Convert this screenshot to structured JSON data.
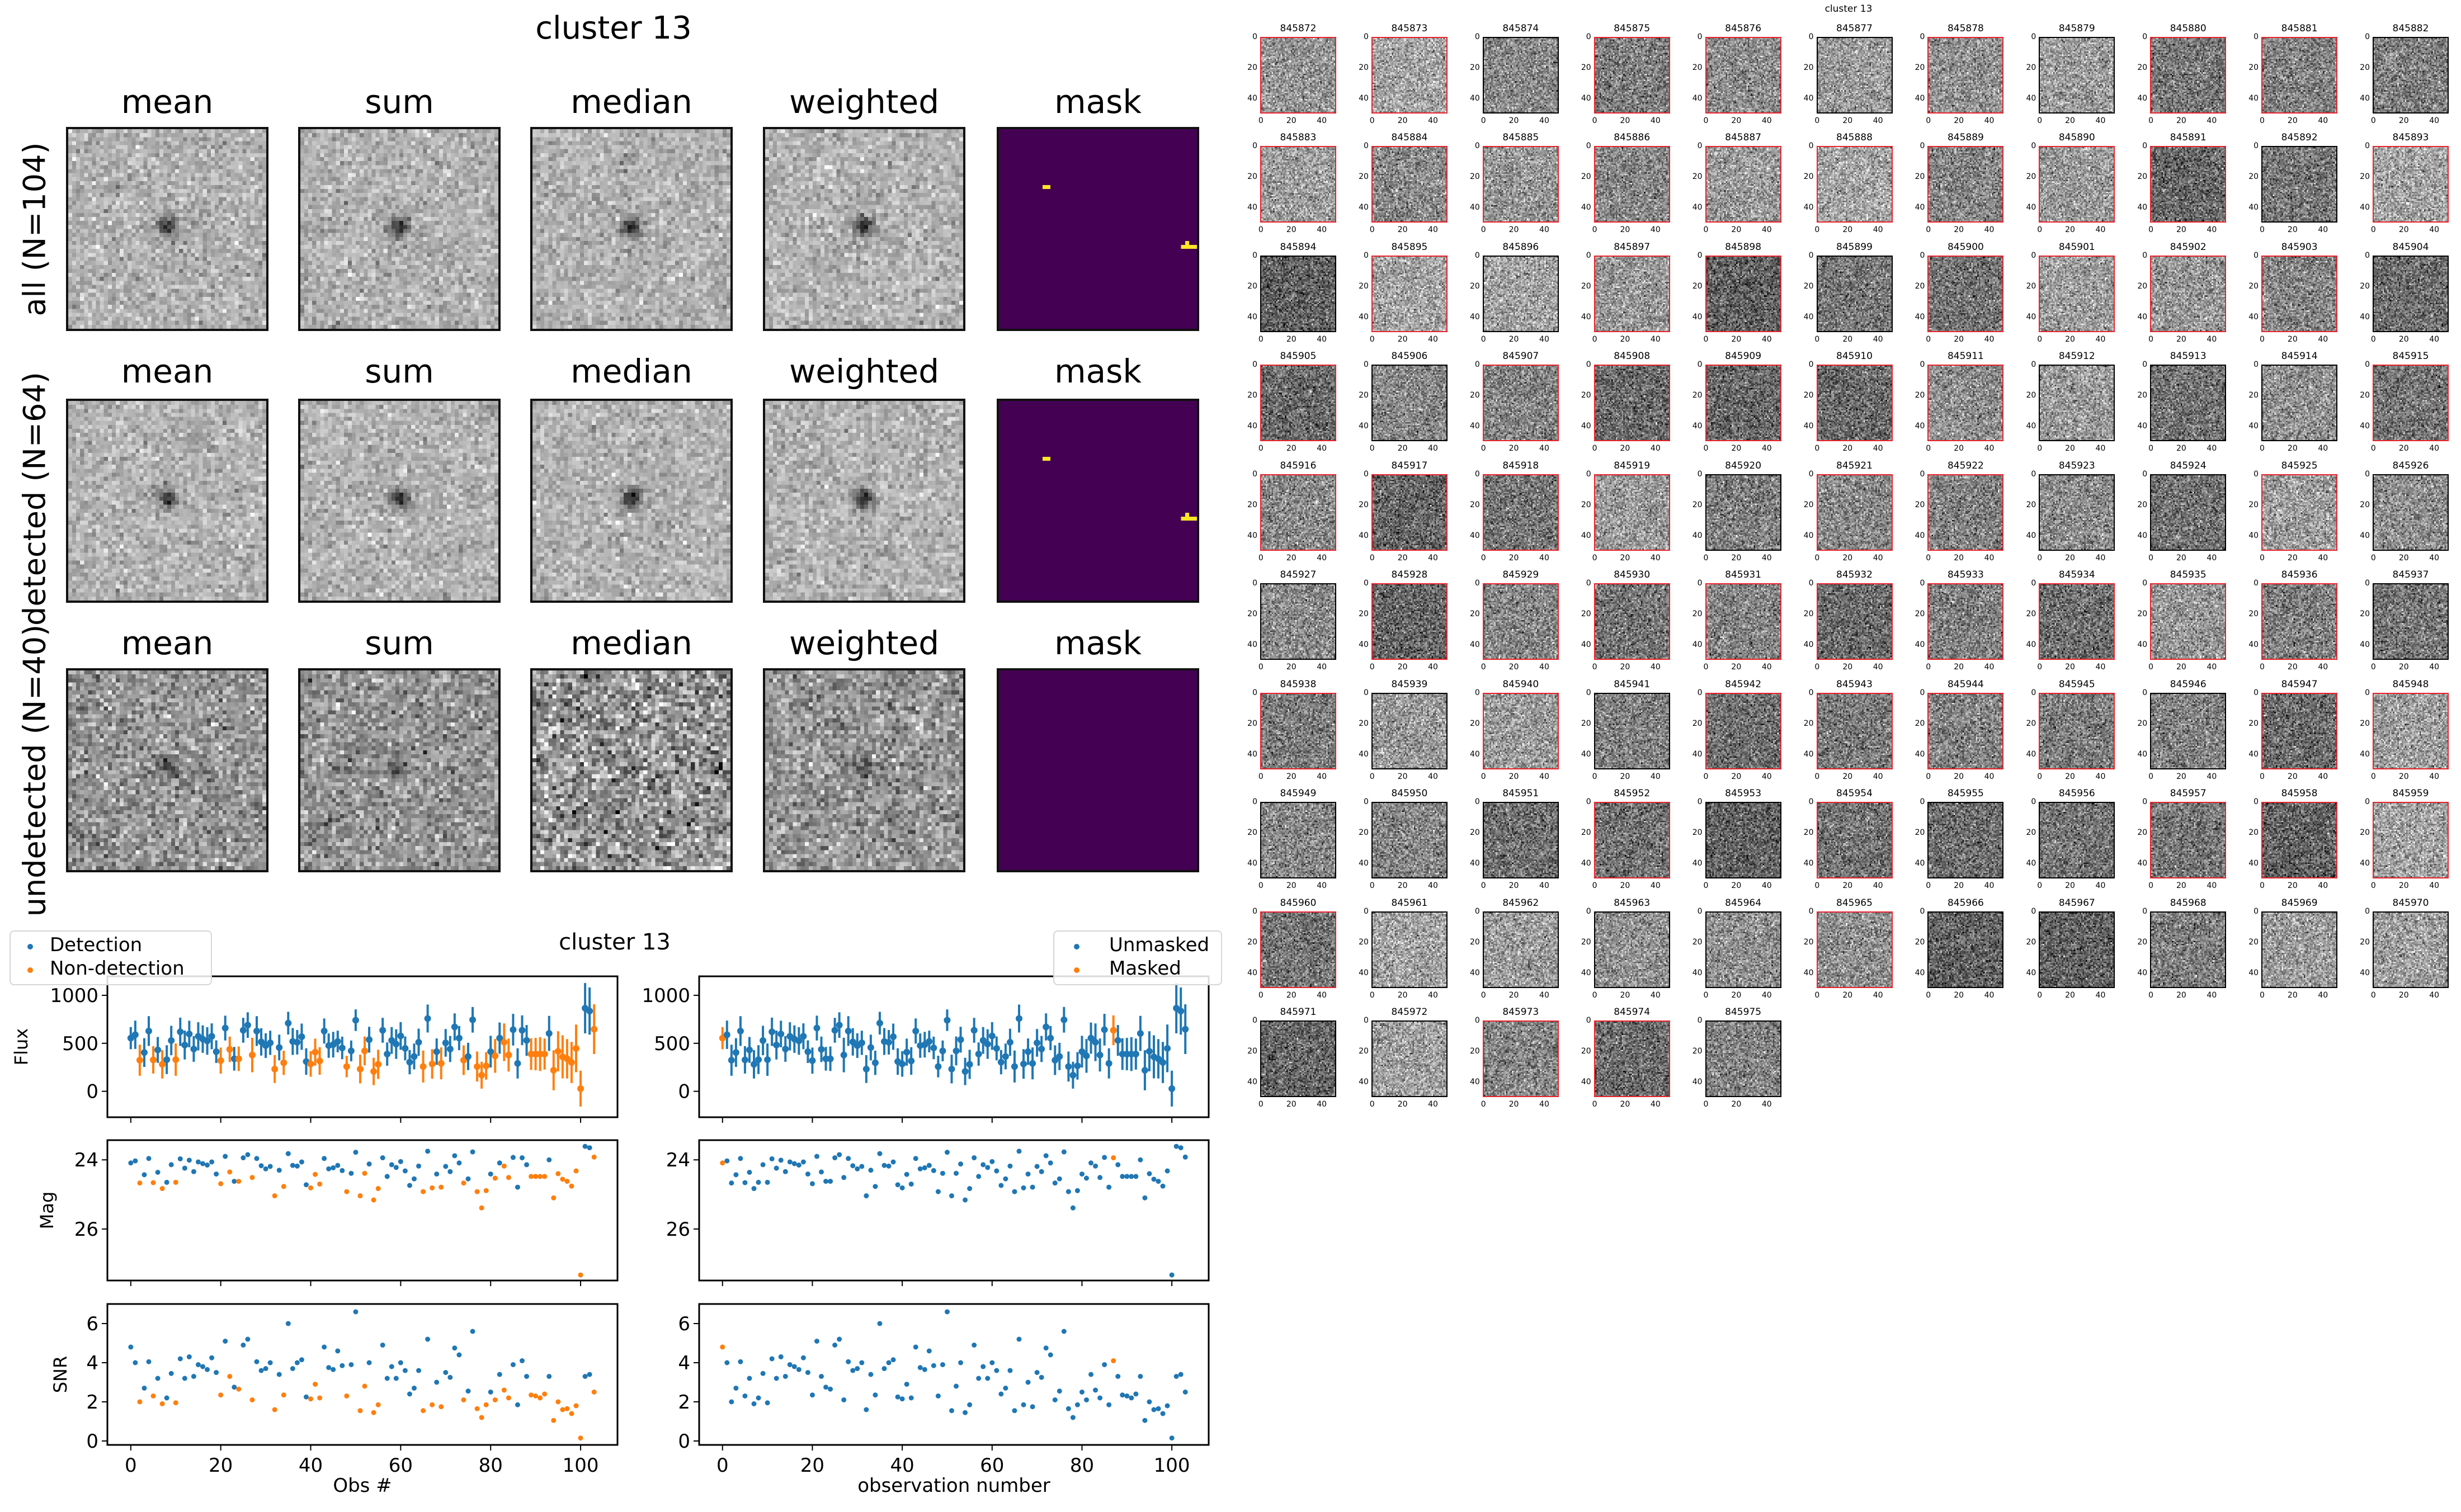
{
  "figure_title": "cluster 13",
  "colors": {
    "detection": "#1f77b4",
    "non_detection": "#ff7f0e",
    "detected_border": "#e8222b",
    "mask_background": "#440154",
    "mask_flag": "#fde725"
  },
  "stacks": {
    "columns": [
      "mean",
      "sum",
      "median",
      "weighted",
      "mask"
    ],
    "rows": [
      {
        "label": "all (N=104)",
        "mask_pixels": [
          [
            14,
            11
          ],
          [
            14,
            12
          ],
          [
            28,
            47
          ],
          [
            29,
            46
          ],
          [
            29,
            47
          ],
          [
            29,
            48
          ],
          [
            29,
            49
          ]
        ]
      },
      {
        "label": "detected (N=64)",
        "mask_pixels": [
          [
            14,
            11
          ],
          [
            14,
            12
          ],
          [
            28,
            47
          ],
          [
            29,
            46
          ],
          [
            29,
            47
          ],
          [
            29,
            48
          ],
          [
            29,
            49
          ]
        ]
      },
      {
        "label": "undetected (N=40)",
        "mask_pixels": []
      }
    ],
    "colormap": "gray",
    "mask_colormap": "viridis"
  },
  "thumbnails": {
    "title": "cluster 13",
    "ticks": [
      "0",
      "20",
      "40"
    ],
    "ids": [
      845872,
      845873,
      845874,
      845875,
      845876,
      845877,
      845878,
      845879,
      845880,
      845881,
      845882,
      845883,
      845884,
      845885,
      845886,
      845887,
      845888,
      845889,
      845890,
      845891,
      845892,
      845893,
      845894,
      845895,
      845896,
      845897,
      845898,
      845899,
      845900,
      845901,
      845902,
      845903,
      845904,
      845905,
      845906,
      845907,
      845908,
      845909,
      845910,
      845911,
      845912,
      845913,
      845914,
      845915,
      845916,
      845917,
      845918,
      845919,
      845920,
      845921,
      845922,
      845923,
      845924,
      845925,
      845926,
      845927,
      845928,
      845929,
      845930,
      845931,
      845932,
      845933,
      845934,
      845935,
      845936,
      845937,
      845938,
      845939,
      845940,
      845941,
      845942,
      845943,
      845944,
      845945,
      845946,
      845947,
      845948,
      845949,
      845950,
      845951,
      845952,
      845953,
      845954,
      845955,
      845956,
      845957,
      845958,
      845959,
      845960,
      845961,
      845962,
      845963,
      845964,
      845965,
      845966,
      845967,
      845968,
      845969,
      845970,
      845971,
      845972,
      845973,
      845974,
      845975
    ],
    "detected": [
      1,
      1,
      0,
      1,
      1,
      0,
      1,
      0,
      1,
      1,
      0,
      1,
      1,
      1,
      1,
      1,
      1,
      1,
      1,
      1,
      0,
      1,
      0,
      1,
      0,
      1,
      1,
      0,
      1,
      1,
      1,
      1,
      0,
      1,
      0,
      1,
      1,
      1,
      1,
      1,
      0,
      0,
      0,
      1,
      1,
      1,
      1,
      1,
      0,
      1,
      1,
      0,
      0,
      1,
      0,
      0,
      1,
      1,
      1,
      1,
      1,
      1,
      1,
      1,
      1,
      0,
      1,
      0,
      1,
      0,
      1,
      1,
      1,
      1,
      0,
      1,
      1,
      0,
      0,
      0,
      1,
      0,
      1,
      0,
      0,
      1,
      1,
      1,
      1,
      0,
      0,
      0,
      0,
      1,
      0,
      0,
      0,
      0,
      0,
      0,
      0,
      1,
      1,
      0
    ]
  },
  "chart_data": {
    "type": "scatter",
    "title": "cluster 13",
    "x": "observation index 0..103",
    "flux": [
      554,
      589,
      324,
      404,
      628,
      328,
      431,
      281,
      330,
      529,
      330,
      620,
      482,
      597,
      441,
      573,
      544,
      525,
      573,
      413,
      320,
      659,
      437,
      339,
      339,
      636,
      690,
      378,
      628,
      515,
      476,
      505,
      232,
      456,
      297,
      710,
      519,
      511,
      569,
      310,
      285,
      408,
      316,
      628,
      476,
      486,
      519,
      452,
      258,
      421,
      741,
      232,
      421,
      538,
      207,
      281,
      636,
      388,
      530,
      492,
      577,
      447,
      304,
      363,
      511,
      258,
      758,
      285,
      413,
      291,
      505,
      441,
      671,
      554,
      324,
      363,
      745,
      258,
      168,
      265,
      413,
      369,
      554,
      511,
      378,
      642,
      291,
      636,
      530,
      388,
      388,
      388,
      388,
      603,
      219,
      417,
      359,
      339,
      300,
      447,
      28,
      866,
      836,
      647
    ],
    "snr": [
      4.8,
      4.0,
      2.0,
      2.7,
      4.05,
      2.3,
      3.2,
      1.9,
      2.2,
      3.45,
      1.95,
      4.2,
      3.2,
      4.3,
      3.3,
      3.9,
      3.8,
      3.65,
      4.25,
      3.5,
      2.35,
      5.1,
      3.3,
      2.75,
      2.65,
      4.9,
      5.2,
      2.1,
      4.05,
      3.6,
      3.7,
      4.0,
      1.6,
      3.4,
      2.35,
      6.0,
      3.7,
      4.0,
      4.15,
      2.25,
      2.15,
      2.9,
      2.2,
      4.8,
      3.75,
      3.65,
      4.6,
      3.85,
      2.3,
      3.9,
      6.6,
      1.55,
      2.8,
      4.0,
      1.45,
      1.85,
      4.9,
      3.2,
      3.8,
      3.2,
      4.0,
      3.6,
      2.4,
      2.7,
      3.6,
      1.55,
      5.2,
      1.85,
      3.0,
      1.75,
      3.5,
      3.25,
      4.75,
      4.4,
      2.1,
      2.55,
      5.6,
      1.65,
      1.2,
      1.85,
      2.5,
      2.1,
      3.4,
      2.6,
      2.2,
      3.9,
      1.85,
      4.1,
      3.3,
      2.35,
      2.3,
      2.2,
      2.4,
      3.3,
      1.05,
      2.0,
      1.6,
      1.65,
      1.4,
      1.8,
      0.15,
      3.3,
      3.4,
      2.5
    ],
    "mag": [
      24.09,
      24.03,
      24.67,
      24.43,
      23.96,
      24.66,
      24.36,
      24.83,
      24.65,
      24.14,
      24.65,
      23.97,
      24.24,
      24.01,
      24.34,
      24.06,
      24.11,
      24.15,
      24.06,
      24.41,
      24.69,
      23.9,
      24.35,
      24.62,
      24.62,
      23.94,
      23.85,
      24.51,
      23.96,
      24.17,
      24.26,
      24.19,
      25.04,
      24.3,
      24.77,
      23.82,
      24.16,
      24.18,
      24.06,
      24.72,
      24.81,
      24.42,
      24.7,
      23.96,
      24.26,
      24.23,
      24.16,
      24.31,
      24.92,
      24.39,
      23.78,
      25.04,
      24.39,
      24.12,
      25.16,
      24.83,
      23.94,
      24.48,
      24.14,
      24.22,
      24.05,
      24.32,
      24.74,
      24.55,
      24.18,
      24.92,
      23.75,
      24.81,
      24.41,
      24.79,
      24.19,
      24.34,
      23.88,
      24.09,
      24.67,
      24.55,
      23.77,
      24.92,
      25.39,
      24.89,
      24.41,
      24.53,
      24.09,
      24.18,
      24.51,
      23.93,
      24.79,
      23.94,
      24.14,
      24.48,
      24.48,
      24.48,
      24.48,
      24.0,
      25.1,
      24.4,
      24.56,
      24.62,
      24.76,
      24.32,
      27.33,
      23.61,
      23.65,
      23.92
    ],
    "masked_obs": [
      0,
      87
    ],
    "left": {
      "legend": [
        "Detection",
        "Non-detection"
      ],
      "legend_placement": "top-left",
      "xlabel": "Obs #",
      "color_by": "detected"
    },
    "right": {
      "legend": [
        "Unmasked",
        "Masked"
      ],
      "legend_placement": "top-right",
      "xlabel": "observation number",
      "color_by": "masked"
    },
    "panels": [
      {
        "key": "flux",
        "ylabel": "Flux",
        "ylim": [
          -270,
          1198
        ],
        "yticks": [
          0,
          500,
          1000
        ],
        "errorbars": true
      },
      {
        "key": "mag",
        "ylabel": "Mag",
        "ylim": [
          27.49,
          23.43
        ],
        "yticks": [
          24,
          26
        ],
        "inverted": true
      },
      {
        "key": "snr",
        "ylabel": "SNR",
        "ylim": [
          -0.2,
          7.0
        ],
        "yticks": [
          0,
          2,
          4,
          6
        ]
      }
    ],
    "xlim": [
      -5.2,
      108.2
    ],
    "xticks": [
      0,
      20,
      40,
      60,
      80,
      100
    ],
    "grid": false
  }
}
